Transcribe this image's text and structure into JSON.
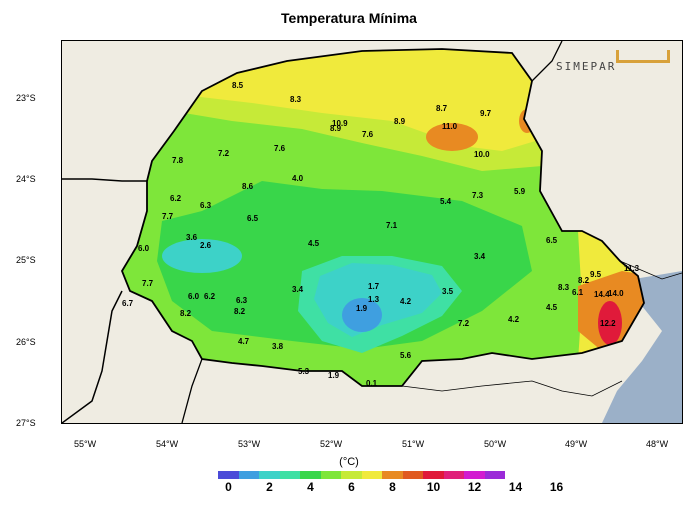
{
  "title": "Temperatura Mínima",
  "logo": {
    "text": "SIMEPAR"
  },
  "lat_labels": [
    "23°S",
    "24°S",
    "25°S",
    "26°S",
    "27°S"
  ],
  "lon_labels": [
    "55°W",
    "54°W",
    "53°W",
    "52°W",
    "51°W",
    "50°W",
    "49°W",
    "48°W"
  ],
  "unit": "(°C)",
  "colorbar": {
    "colors": [
      "#4b4bd8",
      "#3f9fe0",
      "#3dd2c8",
      "#3fe0a4",
      "#39d64a",
      "#7ee63a",
      "#c6ea38",
      "#f0ea3c",
      "#e88a22",
      "#e05a20",
      "#e01a3a",
      "#e0207a",
      "#d21bd0",
      "#9b2ad8"
    ],
    "ticks": [
      "0",
      "2",
      "4",
      "6",
      "8",
      "10",
      "12",
      "14",
      "16"
    ]
  },
  "stations": [
    {
      "v": "8.5"
    },
    {
      "v": "8.3"
    },
    {
      "v": "8.7"
    },
    {
      "v": "8.9"
    },
    {
      "v": "9.7"
    },
    {
      "v": "10.9"
    },
    {
      "v": "8.9"
    },
    {
      "v": "7.6"
    },
    {
      "v": "11.0"
    },
    {
      "v": "10.0"
    },
    {
      "v": "7.8"
    },
    {
      "v": "7.2"
    },
    {
      "v": "7.6"
    },
    {
      "v": "8.6"
    },
    {
      "v": "4.0"
    },
    {
      "v": "6.2"
    },
    {
      "v": "6.3"
    },
    {
      "v": "7.7"
    },
    {
      "v": "6.5"
    },
    {
      "v": "5.4"
    },
    {
      "v": "7.3"
    },
    {
      "v": "5.9"
    },
    {
      "v": "7.1"
    },
    {
      "v": "3.6"
    },
    {
      "v": "2.6"
    },
    {
      "v": "4.5"
    },
    {
      "v": "6.0"
    },
    {
      "v": "6.5"
    },
    {
      "v": "3.4"
    },
    {
      "v": "7.7"
    },
    {
      "v": "6.0"
    },
    {
      "v": "6.2"
    },
    {
      "v": "6.3"
    },
    {
      "v": "3.4"
    },
    {
      "v": "1.7"
    },
    {
      "v": "1.3"
    },
    {
      "v": "4.2"
    },
    {
      "v": "3.5"
    },
    {
      "v": "8.2"
    },
    {
      "v": "9.5"
    },
    {
      "v": "11.3"
    },
    {
      "v": "8.3"
    },
    {
      "v": "6.1"
    },
    {
      "v": "6.7"
    },
    {
      "v": "8.2"
    },
    {
      "v": "8.2"
    },
    {
      "v": "1.9"
    },
    {
      "v": "4.5"
    },
    {
      "v": "14.4"
    },
    {
      "v": "14.0"
    },
    {
      "v": "7.2"
    },
    {
      "v": "4.2"
    },
    {
      "v": "12.2"
    },
    {
      "v": "4.7"
    },
    {
      "v": "3.8"
    },
    {
      "v": "5.6"
    },
    {
      "v": "5.3"
    },
    {
      "v": "1.9"
    },
    {
      "v": "0.1"
    }
  ]
}
